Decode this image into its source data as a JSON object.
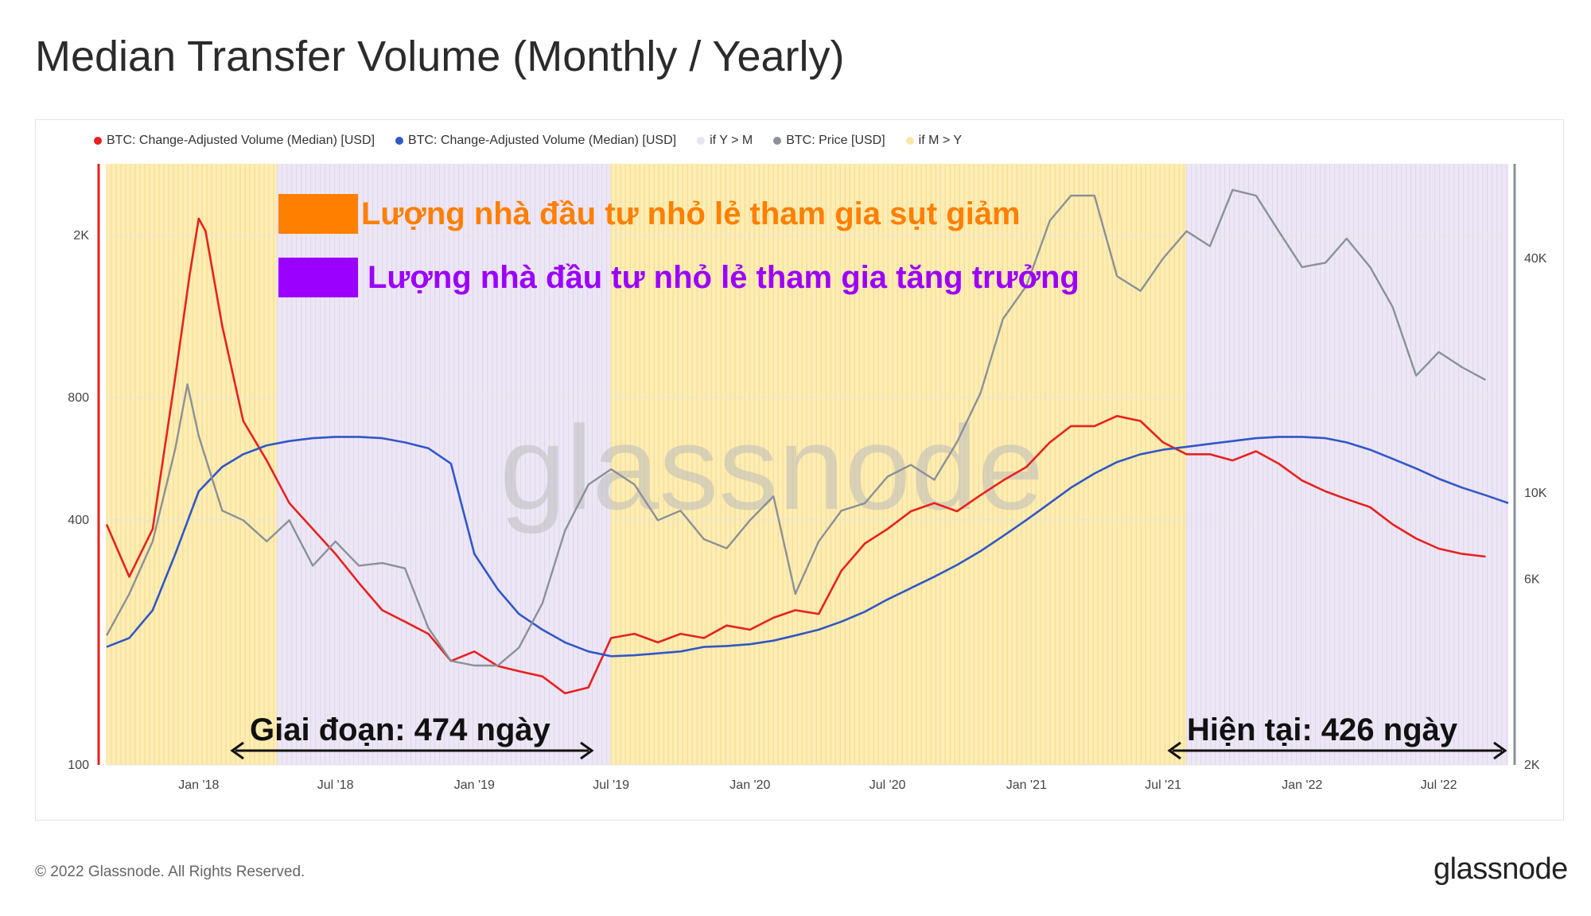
{
  "title": "Median Transfer Volume (Monthly / Yearly)",
  "legend": [
    {
      "label": "BTC: Change-Adjusted Volume (Median) [USD]",
      "color": "#e8211f"
    },
    {
      "label": "BTC: Change-Adjusted Volume (Median) [USD]",
      "color": "#3157c8"
    },
    {
      "label": "if Y > M",
      "color": "#e9e3f3"
    },
    {
      "label": "BTC: Price [USD]",
      "color": "#8a9198"
    },
    {
      "label": "if M > Y",
      "color": "#fbe7a9"
    }
  ],
  "annotations": {
    "orange": {
      "text": "Lượng nhà đầu tư nhỏ lẻ tham gia sụt giảm",
      "color": "#ff7f00"
    },
    "purple": {
      "text": "Lượng nhà đầu tư nhỏ lẻ tham gia tăng trưởng",
      "color": "#9b00ff"
    },
    "period1": "Giai đoạn: 474 ngày",
    "period2": "Hiện tại: 426 ngày"
  },
  "watermark": "glassnode",
  "footer": "© 2022 Glassnode. All Rights Reserved.",
  "brand": "glassnode",
  "chart_data": {
    "type": "line",
    "x_range": [
      "2017-09-01",
      "2022-10-01"
    ],
    "x_ticks": [
      "Jan '18",
      "Jul '18",
      "Jan '19",
      "Jul '19",
      "Jan '20",
      "Jul '20",
      "Jan '21",
      "Jul '21",
      "Jan '22",
      "Jul '22"
    ],
    "y_left": {
      "scale": "log",
      "range": [
        100,
        3000
      ],
      "ticks": [
        "100",
        "400",
        "800",
        "2K"
      ]
    },
    "y_right": {
      "scale": "log",
      "range": [
        2000,
        70000
      ],
      "ticks": [
        "2K",
        "6K",
        "10K",
        "40K"
      ]
    },
    "regions": [
      {
        "label": "if M > Y",
        "start": "2017-09-01",
        "end": "2018-04-15"
      },
      {
        "label": "if Y > M",
        "start": "2018-04-15",
        "end": "2019-07-01"
      },
      {
        "label": "if M > Y",
        "start": "2019-07-01",
        "end": "2021-08-01"
      },
      {
        "label": "if Y > M",
        "start": "2021-08-01",
        "end": "2022-10-01"
      }
    ],
    "series": [
      {
        "name": "BTC: Change-Adjusted Volume (Median) [USD]",
        "axis": "left",
        "color": "#e8211f",
        "points": [
          [
            "2017-09-01",
            390
          ],
          [
            "2017-10-01",
            290
          ],
          [
            "2017-11-01",
            380
          ],
          [
            "2017-12-01",
            900
          ],
          [
            "2017-12-20",
            1600
          ],
          [
            "2018-01-01",
            2200
          ],
          [
            "2018-01-10",
            2050
          ],
          [
            "2018-02-01",
            1200
          ],
          [
            "2018-03-01",
            700
          ],
          [
            "2018-04-01",
            560
          ],
          [
            "2018-05-01",
            440
          ],
          [
            "2018-06-01",
            380
          ],
          [
            "2018-07-01",
            330
          ],
          [
            "2018-08-01",
            280
          ],
          [
            "2018-09-01",
            240
          ],
          [
            "2018-10-01",
            225
          ],
          [
            "2018-11-01",
            210
          ],
          [
            "2018-12-01",
            180
          ],
          [
            "2019-01-01",
            190
          ],
          [
            "2019-02-01",
            175
          ],
          [
            "2019-03-01",
            170
          ],
          [
            "2019-04-01",
            165
          ],
          [
            "2019-05-01",
            150
          ],
          [
            "2019-06-01",
            155
          ],
          [
            "2019-07-01",
            205
          ],
          [
            "2019-08-01",
            210
          ],
          [
            "2019-09-01",
            200
          ],
          [
            "2019-10-01",
            210
          ],
          [
            "2019-11-01",
            205
          ],
          [
            "2019-12-01",
            220
          ],
          [
            "2020-01-01",
            215
          ],
          [
            "2020-02-01",
            230
          ],
          [
            "2020-03-01",
            240
          ],
          [
            "2020-04-01",
            235
          ],
          [
            "2020-05-01",
            300
          ],
          [
            "2020-06-01",
            350
          ],
          [
            "2020-07-01",
            380
          ],
          [
            "2020-08-01",
            420
          ],
          [
            "2020-09-01",
            440
          ],
          [
            "2020-10-01",
            420
          ],
          [
            "2020-11-01",
            460
          ],
          [
            "2020-12-01",
            500
          ],
          [
            "2021-01-01",
            540
          ],
          [
            "2021-02-01",
            620
          ],
          [
            "2021-03-01",
            680
          ],
          [
            "2021-04-01",
            680
          ],
          [
            "2021-05-01",
            720
          ],
          [
            "2021-06-01",
            700
          ],
          [
            "2021-07-01",
            620
          ],
          [
            "2021-08-01",
            580
          ],
          [
            "2021-09-01",
            580
          ],
          [
            "2021-10-01",
            560
          ],
          [
            "2021-11-01",
            590
          ],
          [
            "2021-12-01",
            550
          ],
          [
            "2022-01-01",
            500
          ],
          [
            "2022-02-01",
            470
          ],
          [
            "2022-03-01",
            450
          ],
          [
            "2022-04-01",
            430
          ],
          [
            "2022-05-01",
            390
          ],
          [
            "2022-06-01",
            360
          ],
          [
            "2022-07-01",
            340
          ],
          [
            "2022-08-01",
            330
          ],
          [
            "2022-09-01",
            325
          ]
        ]
      },
      {
        "name": "BTC: Change-Adjusted Volume (Median) [USD]",
        "axis": "left",
        "color": "#3157c8",
        "points": [
          [
            "2017-09-01",
            195
          ],
          [
            "2017-10-01",
            205
          ],
          [
            "2017-11-01",
            240
          ],
          [
            "2017-12-01",
            330
          ],
          [
            "2018-01-01",
            470
          ],
          [
            "2018-02-01",
            540
          ],
          [
            "2018-03-01",
            580
          ],
          [
            "2018-04-01",
            610
          ],
          [
            "2018-05-01",
            625
          ],
          [
            "2018-06-01",
            635
          ],
          [
            "2018-07-01",
            640
          ],
          [
            "2018-08-01",
            640
          ],
          [
            "2018-09-01",
            635
          ],
          [
            "2018-10-01",
            620
          ],
          [
            "2018-11-01",
            600
          ],
          [
            "2018-12-01",
            550
          ],
          [
            "2019-01-01",
            330
          ],
          [
            "2019-02-01",
            270
          ],
          [
            "2019-03-01",
            235
          ],
          [
            "2019-04-01",
            215
          ],
          [
            "2019-05-01",
            200
          ],
          [
            "2019-06-01",
            190
          ],
          [
            "2019-07-01",
            185
          ],
          [
            "2019-08-01",
            186
          ],
          [
            "2019-09-01",
            188
          ],
          [
            "2019-10-01",
            190
          ],
          [
            "2019-11-01",
            195
          ],
          [
            "2019-12-01",
            196
          ],
          [
            "2020-01-01",
            198
          ],
          [
            "2020-02-01",
            202
          ],
          [
            "2020-03-01",
            208
          ],
          [
            "2020-04-01",
            215
          ],
          [
            "2020-05-01",
            225
          ],
          [
            "2020-06-01",
            238
          ],
          [
            "2020-07-01",
            255
          ],
          [
            "2020-08-01",
            272
          ],
          [
            "2020-09-01",
            290
          ],
          [
            "2020-10-01",
            310
          ],
          [
            "2020-11-01",
            335
          ],
          [
            "2020-12-01",
            365
          ],
          [
            "2021-01-01",
            400
          ],
          [
            "2021-02-01",
            440
          ],
          [
            "2021-03-01",
            480
          ],
          [
            "2021-04-01",
            520
          ],
          [
            "2021-05-01",
            555
          ],
          [
            "2021-06-01",
            580
          ],
          [
            "2021-07-01",
            595
          ],
          [
            "2021-08-01",
            605
          ],
          [
            "2021-09-01",
            615
          ],
          [
            "2021-10-01",
            625
          ],
          [
            "2021-11-01",
            635
          ],
          [
            "2021-12-01",
            640
          ],
          [
            "2022-01-01",
            640
          ],
          [
            "2022-02-01",
            635
          ],
          [
            "2022-03-01",
            620
          ],
          [
            "2022-04-01",
            595
          ],
          [
            "2022-05-01",
            565
          ],
          [
            "2022-06-01",
            535
          ],
          [
            "2022-07-01",
            505
          ],
          [
            "2022-08-01",
            480
          ],
          [
            "2022-09-01",
            460
          ],
          [
            "2022-10-01",
            440
          ]
        ]
      },
      {
        "name": "BTC: Price [USD]",
        "axis": "right",
        "color": "#8a9198",
        "points": [
          [
            "2017-09-01",
            4300
          ],
          [
            "2017-10-01",
            5500
          ],
          [
            "2017-11-01",
            7500
          ],
          [
            "2017-12-01",
            13000
          ],
          [
            "2017-12-17",
            19000
          ],
          [
            "2018-01-01",
            14000
          ],
          [
            "2018-02-01",
            9000
          ],
          [
            "2018-03-01",
            8500
          ],
          [
            "2018-04-01",
            7500
          ],
          [
            "2018-05-01",
            8500
          ],
          [
            "2018-06-01",
            6500
          ],
          [
            "2018-07-01",
            7500
          ],
          [
            "2018-08-01",
            6500
          ],
          [
            "2018-09-01",
            6600
          ],
          [
            "2018-10-01",
            6400
          ],
          [
            "2018-11-01",
            4500
          ],
          [
            "2018-12-01",
            3700
          ],
          [
            "2019-01-01",
            3600
          ],
          [
            "2019-02-01",
            3600
          ],
          [
            "2019-03-01",
            4000
          ],
          [
            "2019-04-01",
            5200
          ],
          [
            "2019-05-01",
            8000
          ],
          [
            "2019-06-01",
            10500
          ],
          [
            "2019-07-01",
            11500
          ],
          [
            "2019-08-01",
            10500
          ],
          [
            "2019-09-01",
            8500
          ],
          [
            "2019-10-01",
            9000
          ],
          [
            "2019-11-01",
            7600
          ],
          [
            "2019-12-01",
            7200
          ],
          [
            "2020-01-01",
            8500
          ],
          [
            "2020-02-01",
            9800
          ],
          [
            "2020-03-01",
            5500
          ],
          [
            "2020-04-01",
            7500
          ],
          [
            "2020-05-01",
            9000
          ],
          [
            "2020-06-01",
            9400
          ],
          [
            "2020-07-01",
            11000
          ],
          [
            "2020-08-01",
            11800
          ],
          [
            "2020-09-01",
            10800
          ],
          [
            "2020-10-01",
            13500
          ],
          [
            "2020-11-01",
            18000
          ],
          [
            "2020-12-01",
            28000
          ],
          [
            "2021-01-01",
            34000
          ],
          [
            "2021-02-01",
            50000
          ],
          [
            "2021-03-01",
            58000
          ],
          [
            "2021-04-01",
            58000
          ],
          [
            "2021-05-01",
            36000
          ],
          [
            "2021-06-01",
            33000
          ],
          [
            "2021-07-01",
            40000
          ],
          [
            "2021-08-01",
            47000
          ],
          [
            "2021-09-01",
            43000
          ],
          [
            "2021-10-01",
            60000
          ],
          [
            "2021-11-01",
            58000
          ],
          [
            "2021-12-01",
            47000
          ],
          [
            "2022-01-01",
            38000
          ],
          [
            "2022-02-01",
            39000
          ],
          [
            "2022-03-01",
            45000
          ],
          [
            "2022-04-01",
            38000
          ],
          [
            "2022-05-01",
            30000
          ],
          [
            "2022-06-01",
            20000
          ],
          [
            "2022-07-01",
            23000
          ],
          [
            "2022-08-01",
            21000
          ],
          [
            "2022-09-01",
            19500
          ]
        ]
      }
    ]
  }
}
